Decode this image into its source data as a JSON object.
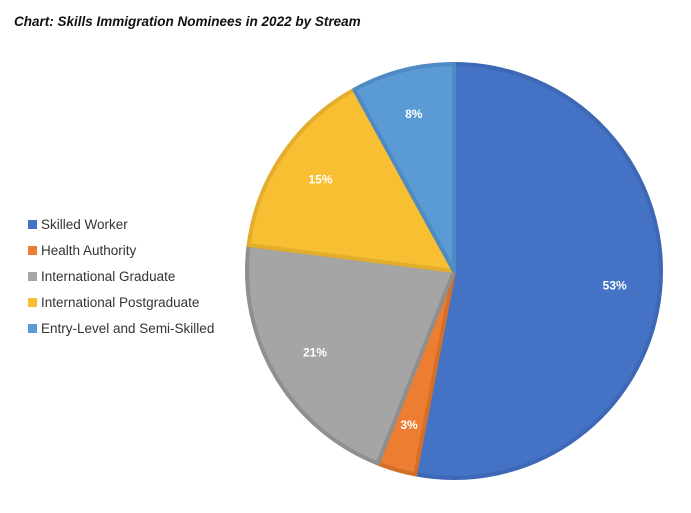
{
  "chart_data": {
    "type": "pie",
    "title": "Chart: Skills Immigration Nominees in 2022 by Stream",
    "slices": [
      {
        "name": "Skilled Worker",
        "value": 53,
        "label": "53%",
        "color": "#4472C4",
        "stroke": "#3E68B5"
      },
      {
        "name": "Health Authority",
        "value": 3,
        "label": "3%",
        "color": "#ED7D31",
        "stroke": "#D46F2A"
      },
      {
        "name": "International Graduate",
        "value": 21,
        "label": "21%",
        "color": "#A5A5A5",
        "stroke": "#8F8F8F"
      },
      {
        "name": "International Postgraduate",
        "value": 15,
        "label": "15%",
        "color": "#F9BF33",
        "stroke": "#E3AE2E"
      },
      {
        "name": "Entry-Level and Semi-Skilled",
        "value": 8,
        "label": "8%",
        "color": "#5B9BD5",
        "stroke": "#4F8BC2"
      }
    ],
    "start": "12 o'clock",
    "direction": "clockwise",
    "legend_position": "left"
  }
}
